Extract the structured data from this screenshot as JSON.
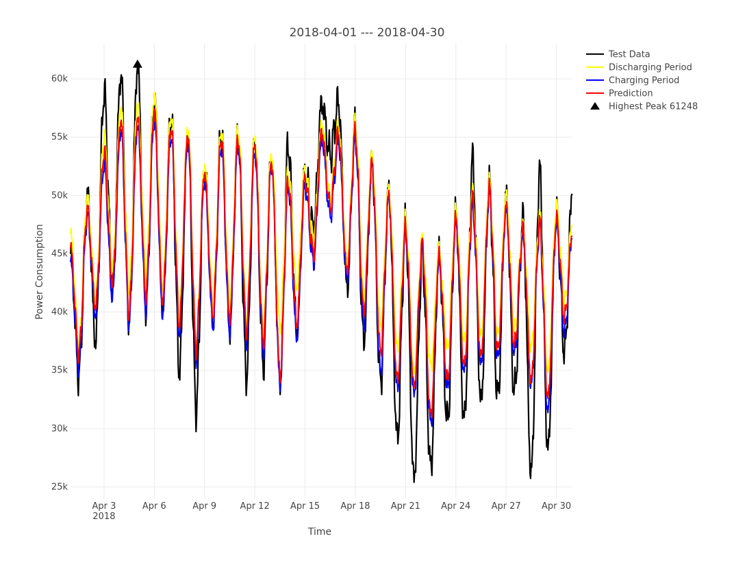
{
  "chart_data": {
    "type": "line",
    "title": "2018-04-01 --- 2018-04-30",
    "xlabel": "Time",
    "ylabel": "Power Consumption",
    "x_range": [
      "2018-04-01T00:00",
      "2018-04-30T23:00"
    ],
    "ylim": [
      24000,
      63000
    ],
    "y_ticks": [
      25000,
      30000,
      35000,
      40000,
      45000,
      50000,
      55000,
      60000
    ],
    "y_tick_labels": [
      "25k",
      "30k",
      "35k",
      "40k",
      "45k",
      "50k",
      "55k",
      "60k"
    ],
    "x_ticks": [
      "2018-04-03",
      "2018-04-06",
      "2018-04-09",
      "2018-04-12",
      "2018-04-15",
      "2018-04-18",
      "2018-04-21",
      "2018-04-24",
      "2018-04-27",
      "2018-04-30"
    ],
    "x_tick_labels": [
      "Apr 3",
      "Apr 6",
      "Apr 9",
      "Apr 12",
      "Apr 15",
      "Apr 18",
      "Apr 21",
      "Apr 24",
      "Apr 27",
      "Apr 30"
    ],
    "x_tick_sublabel": "2018",
    "grid": true,
    "legend_position": "top-right",
    "series": [
      {
        "name": "Test Data",
        "color": "#000000",
        "x": [
          "2018-04-01T00:00",
          "2018-04-01T12:00",
          "2018-04-02T00:00",
          "2018-04-02T12:00",
          "2018-04-03T00:00",
          "2018-04-03T12:00",
          "2018-04-04T00:00",
          "2018-04-04T12:00",
          "2018-04-05T00:00",
          "2018-04-05T12:00",
          "2018-04-06T00:00",
          "2018-04-06T12:00",
          "2018-04-07T00:00",
          "2018-04-07T12:00",
          "2018-04-08T00:00",
          "2018-04-08T12:00",
          "2018-04-09T00:00",
          "2018-04-09T12:00",
          "2018-04-10T00:00",
          "2018-04-10T12:00",
          "2018-04-11T00:00",
          "2018-04-11T12:00",
          "2018-04-12T00:00",
          "2018-04-12T12:00",
          "2018-04-13T00:00",
          "2018-04-13T12:00",
          "2018-04-14T00:00",
          "2018-04-14T12:00",
          "2018-04-15T00:00",
          "2018-04-15T12:00",
          "2018-04-16T00:00",
          "2018-04-16T12:00",
          "2018-04-17T00:00",
          "2018-04-17T12:00",
          "2018-04-18T00:00",
          "2018-04-18T12:00",
          "2018-04-19T00:00",
          "2018-04-19T12:00",
          "2018-04-20T00:00",
          "2018-04-20T12:00",
          "2018-04-21T00:00",
          "2018-04-21T12:00",
          "2018-04-22T00:00",
          "2018-04-22T12:00",
          "2018-04-23T00:00",
          "2018-04-23T12:00",
          "2018-04-24T00:00",
          "2018-04-24T12:00",
          "2018-04-25T00:00",
          "2018-04-25T12:00",
          "2018-04-26T00:00",
          "2018-04-26T12:00",
          "2018-04-27T00:00",
          "2018-04-27T12:00",
          "2018-04-28T00:00",
          "2018-04-28T12:00",
          "2018-04-29T00:00",
          "2018-04-29T12:00",
          "2018-04-30T00:00",
          "2018-04-30T12:00",
          "2018-04-30T23:00"
        ],
        "y": [
          45000,
          34500,
          50000,
          37500,
          59000,
          42500,
          60500,
          39500,
          61248,
          40500,
          58500,
          40500,
          57000,
          35000,
          55500,
          31800,
          52500,
          39500,
          55500,
          38500,
          55500,
          34500,
          55000,
          35500,
          53500,
          34000,
          54500,
          38500,
          52000,
          47000,
          58000,
          53500,
          58000,
          42000,
          56000,
          37500,
          53000,
          34000,
          50500,
          29000,
          47500,
          25500,
          45000,
          26500,
          45000,
          30500,
          48500,
          30500,
          53000,
          32000,
          51000,
          32500,
          50000,
          33000,
          48000,
          26000,
          52000,
          28000,
          48500,
          36500,
          51000
        ]
      },
      {
        "name": "Discharging Period",
        "color": "#ffff00",
        "x": [
          "2018-04-01T00:00",
          "2018-04-01T12:00",
          "2018-04-02T00:00",
          "2018-04-02T12:00",
          "2018-04-03T00:00",
          "2018-04-03T12:00",
          "2018-04-04T00:00",
          "2018-04-04T12:00",
          "2018-04-05T00:00",
          "2018-04-05T12:00",
          "2018-04-06T00:00",
          "2018-04-06T12:00",
          "2018-04-07T00:00",
          "2018-04-07T12:00",
          "2018-04-08T00:00",
          "2018-04-08T12:00",
          "2018-04-09T00:00",
          "2018-04-09T12:00",
          "2018-04-10T00:00",
          "2018-04-10T12:00",
          "2018-04-11T00:00",
          "2018-04-11T12:00",
          "2018-04-12T00:00",
          "2018-04-12T12:00",
          "2018-04-13T00:00",
          "2018-04-13T12:00",
          "2018-04-14T00:00",
          "2018-04-14T12:00",
          "2018-04-15T00:00",
          "2018-04-15T12:00",
          "2018-04-16T00:00",
          "2018-04-16T12:00",
          "2018-04-17T00:00",
          "2018-04-17T12:00",
          "2018-04-18T00:00",
          "2018-04-18T12:00",
          "2018-04-19T00:00",
          "2018-04-19T12:00",
          "2018-04-20T00:00",
          "2018-04-20T12:00",
          "2018-04-21T00:00",
          "2018-04-21T12:00",
          "2018-04-22T00:00",
          "2018-04-22T12:00",
          "2018-04-23T00:00",
          "2018-04-23T12:00",
          "2018-04-24T00:00",
          "2018-04-24T12:00",
          "2018-04-25T00:00",
          "2018-04-25T12:00",
          "2018-04-26T00:00",
          "2018-04-26T12:00",
          "2018-04-27T00:00",
          "2018-04-27T12:00",
          "2018-04-28T00:00",
          "2018-04-28T12:00",
          "2018-04-29T00:00",
          "2018-04-29T12:00",
          "2018-04-30T00:00",
          "2018-04-30T12:00",
          "2018-04-30T23:00"
        ],
        "y": [
          46500,
          37000,
          49500,
          41000,
          55000,
          43500,
          57500,
          42000,
          57800,
          43000,
          58500,
          42000,
          56800,
          39500,
          55800,
          37000,
          52500,
          40500,
          55500,
          40500,
          55600,
          39000,
          55000,
          38000,
          53500,
          38500,
          51800,
          42000,
          52000,
          46000,
          56000,
          49500,
          55800,
          44000,
          56000,
          41000,
          53200,
          38500,
          50300,
          36500,
          47600,
          34500,
          46000,
          35000,
          45000,
          36500,
          48400,
          37000,
          50000,
          37500,
          50900,
          37500,
          49800,
          38000,
          47000,
          36500,
          48000,
          34500,
          48700,
          40500,
          47700
        ]
      },
      {
        "name": "Charging Period",
        "color": "#0000ff",
        "x": [
          "2018-04-01T00:00",
          "2018-04-01T12:00",
          "2018-04-02T00:00",
          "2018-04-02T12:00",
          "2018-04-03T00:00",
          "2018-04-03T12:00",
          "2018-04-04T00:00",
          "2018-04-04T12:00",
          "2018-04-05T00:00",
          "2018-04-05T12:00",
          "2018-04-06T00:00",
          "2018-04-06T12:00",
          "2018-04-07T00:00",
          "2018-04-07T12:00",
          "2018-04-08T00:00",
          "2018-04-08T12:00",
          "2018-04-09T00:00",
          "2018-04-09T12:00",
          "2018-04-10T00:00",
          "2018-04-10T12:00",
          "2018-04-11T00:00",
          "2018-04-11T12:00",
          "2018-04-12T00:00",
          "2018-04-12T12:00",
          "2018-04-13T00:00",
          "2018-04-13T12:00",
          "2018-04-14T00:00",
          "2018-04-14T12:00",
          "2018-04-15T00:00",
          "2018-04-15T12:00",
          "2018-04-16T00:00",
          "2018-04-16T12:00",
          "2018-04-17T00:00",
          "2018-04-17T12:00",
          "2018-04-18T00:00",
          "2018-04-18T12:00",
          "2018-04-19T00:00",
          "2018-04-19T12:00",
          "2018-04-20T00:00",
          "2018-04-20T12:00",
          "2018-04-21T00:00",
          "2018-04-21T12:00",
          "2018-04-22T00:00",
          "2018-04-22T12:00",
          "2018-04-23T00:00",
          "2018-04-23T12:00",
          "2018-04-24T00:00",
          "2018-04-24T12:00",
          "2018-04-25T00:00",
          "2018-04-25T12:00",
          "2018-04-26T00:00",
          "2018-04-26T12:00",
          "2018-04-27T00:00",
          "2018-04-27T12:00",
          "2018-04-28T00:00",
          "2018-04-28T12:00",
          "2018-04-29T00:00",
          "2018-04-29T12:00",
          "2018-04-30T00:00",
          "2018-04-30T12:00",
          "2018-04-30T23:00"
        ],
        "y": [
          44500,
          35500,
          48500,
          40000,
          53000,
          41500,
          56000,
          39300,
          56300,
          40500,
          56800,
          40000,
          55500,
          38500,
          54800,
          36500,
          51500,
          39000,
          54500,
          38500,
          54600,
          37800,
          54000,
          36800,
          53000,
          34000,
          51000,
          38000,
          51000,
          44500,
          55000,
          48500,
          54800,
          43000,
          55000,
          39000,
          52800,
          35000,
          50000,
          33500,
          47000,
          33000,
          45500,
          30500,
          44500,
          33500,
          47800,
          34800,
          49200,
          35500,
          50400,
          36000,
          48800,
          36500,
          46800,
          33800,
          47500,
          31500,
          47800,
          38500,
          47000
        ]
      },
      {
        "name": "Prediction",
        "color": "#ff0000",
        "x": [
          "2018-04-01T00:00",
          "2018-04-01T12:00",
          "2018-04-02T00:00",
          "2018-04-02T12:00",
          "2018-04-03T00:00",
          "2018-04-03T12:00",
          "2018-04-04T00:00",
          "2018-04-04T12:00",
          "2018-04-05T00:00",
          "2018-04-05T12:00",
          "2018-04-06T00:00",
          "2018-04-06T12:00",
          "2018-04-07T00:00",
          "2018-04-07T12:00",
          "2018-04-08T00:00",
          "2018-04-08T12:00",
          "2018-04-09T00:00",
          "2018-04-09T12:00",
          "2018-04-10T00:00",
          "2018-04-10T12:00",
          "2018-04-11T00:00",
          "2018-04-11T12:00",
          "2018-04-12T00:00",
          "2018-04-12T12:00",
          "2018-04-13T00:00",
          "2018-04-13T12:00",
          "2018-04-14T00:00",
          "2018-04-14T12:00",
          "2018-04-15T00:00",
          "2018-04-15T12:00",
          "2018-04-16T00:00",
          "2018-04-16T12:00",
          "2018-04-17T00:00",
          "2018-04-17T12:00",
          "2018-04-18T00:00",
          "2018-04-18T12:00",
          "2018-04-19T00:00",
          "2018-04-19T12:00",
          "2018-04-20T00:00",
          "2018-04-20T12:00",
          "2018-04-21T00:00",
          "2018-04-21T12:00",
          "2018-04-22T00:00",
          "2018-04-22T12:00",
          "2018-04-23T00:00",
          "2018-04-23T12:00",
          "2018-04-24T00:00",
          "2018-04-24T12:00",
          "2018-04-25T00:00",
          "2018-04-25T12:00",
          "2018-04-26T00:00",
          "2018-04-26T12:00",
          "2018-04-27T00:00",
          "2018-04-27T12:00",
          "2018-04-28T00:00",
          "2018-04-28T12:00",
          "2018-04-29T00:00",
          "2018-04-29T12:00",
          "2018-04-30T00:00",
          "2018-04-30T12:00",
          "2018-04-30T23:00"
        ],
        "y": [
          45500,
          36500,
          48800,
          40500,
          53800,
          42500,
          56600,
          40000,
          56800,
          41500,
          57300,
          41000,
          56000,
          39000,
          55300,
          37000,
          52000,
          39800,
          55000,
          39500,
          55000,
          38500,
          54500,
          37500,
          53000,
          34500,
          51300,
          39000,
          51500,
          45000,
          55500,
          49000,
          55300,
          43500,
          55500,
          40000,
          52800,
          36500,
          50000,
          34000,
          47200,
          33500,
          45800,
          31000,
          44800,
          34000,
          48000,
          35200,
          49600,
          36000,
          50600,
          36500,
          49000,
          37000,
          47000,
          34000,
          47700,
          32500,
          48000,
          39500,
          47000
        ]
      }
    ],
    "annotations": [
      {
        "name": "Highest Peak 61248",
        "marker": "triangle-up",
        "color": "#000000",
        "x": "2018-04-05T00:00",
        "y": 61248
      }
    ]
  }
}
